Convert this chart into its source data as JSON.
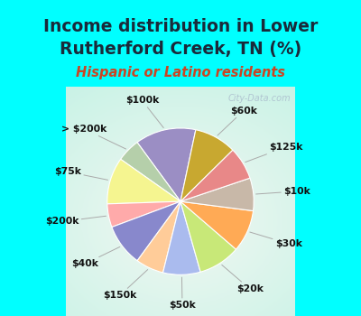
{
  "title_line1": "Income distribution in Lower",
  "title_line2": "Rutherford Creek, TN (%)",
  "subtitle": "Hispanic or Latino residents",
  "watermark": "City-Data.com",
  "bg_cyan": "#00FFFF",
  "bg_chart_inner": "#e8f5f0",
  "title_color": "#1a2a3a",
  "subtitle_color": "#cc4422",
  "watermark_color": "#aabbcc",
  "title_fontsize": 13.5,
  "subtitle_fontsize": 10.5,
  "label_fontsize": 7.8,
  "labels": [
    "$100k",
    "> $200k",
    "$75k",
    "$200k",
    "$40k",
    "$150k",
    "$50k",
    "$20k",
    "$30k",
    "$10k",
    "$125k",
    "$60k"
  ],
  "values": [
    13,
    5,
    10,
    5,
    9,
    6,
    8,
    9,
    9,
    7,
    7,
    9
  ],
  "colors": [
    "#9b8ec4",
    "#b5cfaa",
    "#f5f590",
    "#ffaaaa",
    "#8888cc",
    "#ffcc99",
    "#aabbee",
    "#c8e878",
    "#ffaa55",
    "#c8b8a8",
    "#e88888",
    "#c8a830"
  ],
  "startangle": 78,
  "wedge_linewidth": 0.8,
  "wedge_edgecolor": "white"
}
